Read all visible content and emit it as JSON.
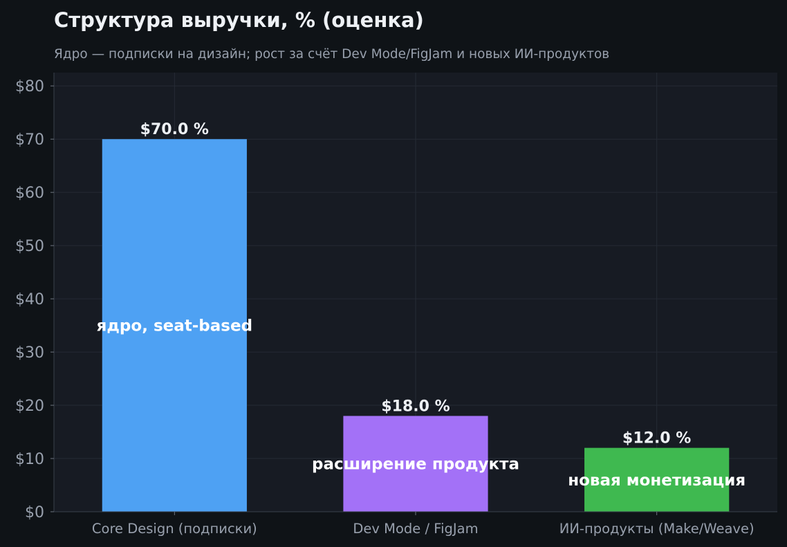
{
  "chart_data": {
    "type": "bar",
    "title": "Структура выручки, % (оценка)",
    "subtitle": "Ядро — подписки на дизайн; рост за счёт Dev Mode/FigJam и новых ИИ-продуктов",
    "categories": [
      "Core Design (подписки)",
      "Dev Mode / FigJam",
      "ИИ-продукты (Make/Weave)"
    ],
    "values": [
      70.0,
      18.0,
      12.0
    ],
    "value_labels": [
      "$70.0 %",
      "$18.0 %",
      "$12.0 %"
    ],
    "bar_annotations": [
      "ядро, seat-based",
      "расширение продукта",
      "новая монетизация"
    ],
    "colors": [
      "#4ea1f3",
      "#a371f7",
      "#3fb950"
    ],
    "ylim": [
      0,
      82.5
    ],
    "yticks": [
      0,
      10,
      20,
      30,
      40,
      50,
      60,
      70,
      80
    ],
    "ytick_labels": [
      "$0",
      "$10",
      "$20",
      "$30",
      "$40",
      "$50",
      "$60",
      "$70",
      "$80"
    ],
    "xlabel": "",
    "ylabel": "",
    "grid": true,
    "legend": "none"
  }
}
